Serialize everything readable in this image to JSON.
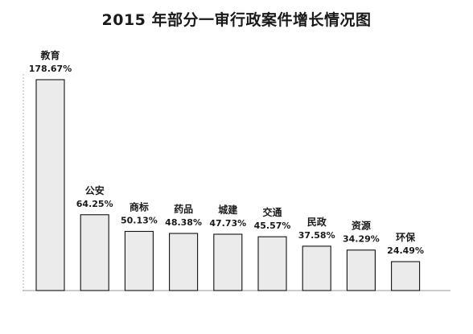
{
  "chart_data": {
    "type": "bar",
    "title": "2015 年部分一审行政案件增长情况图",
    "categories": [
      "教育",
      "公安",
      "商标",
      "药品",
      "城建",
      "交通",
      "民政",
      "资源",
      "环保"
    ],
    "values": [
      178.67,
      64.25,
      50.13,
      48.38,
      47.73,
      45.57,
      37.58,
      34.29,
      24.49
    ],
    "value_labels": [
      "178.67%",
      "64.25%",
      "50.13%",
      "48.38%",
      "47.73%",
      "45.57%",
      "37.58%",
      "34.29%",
      "24.49%"
    ],
    "xlabel": "",
    "ylabel": "",
    "ylim": [
      0,
      178.67
    ],
    "grid": false,
    "legend": "none",
    "colors": {
      "bar_fill": "#ebebeb",
      "bar_stroke": "#111111",
      "axis": "#999999"
    }
  }
}
